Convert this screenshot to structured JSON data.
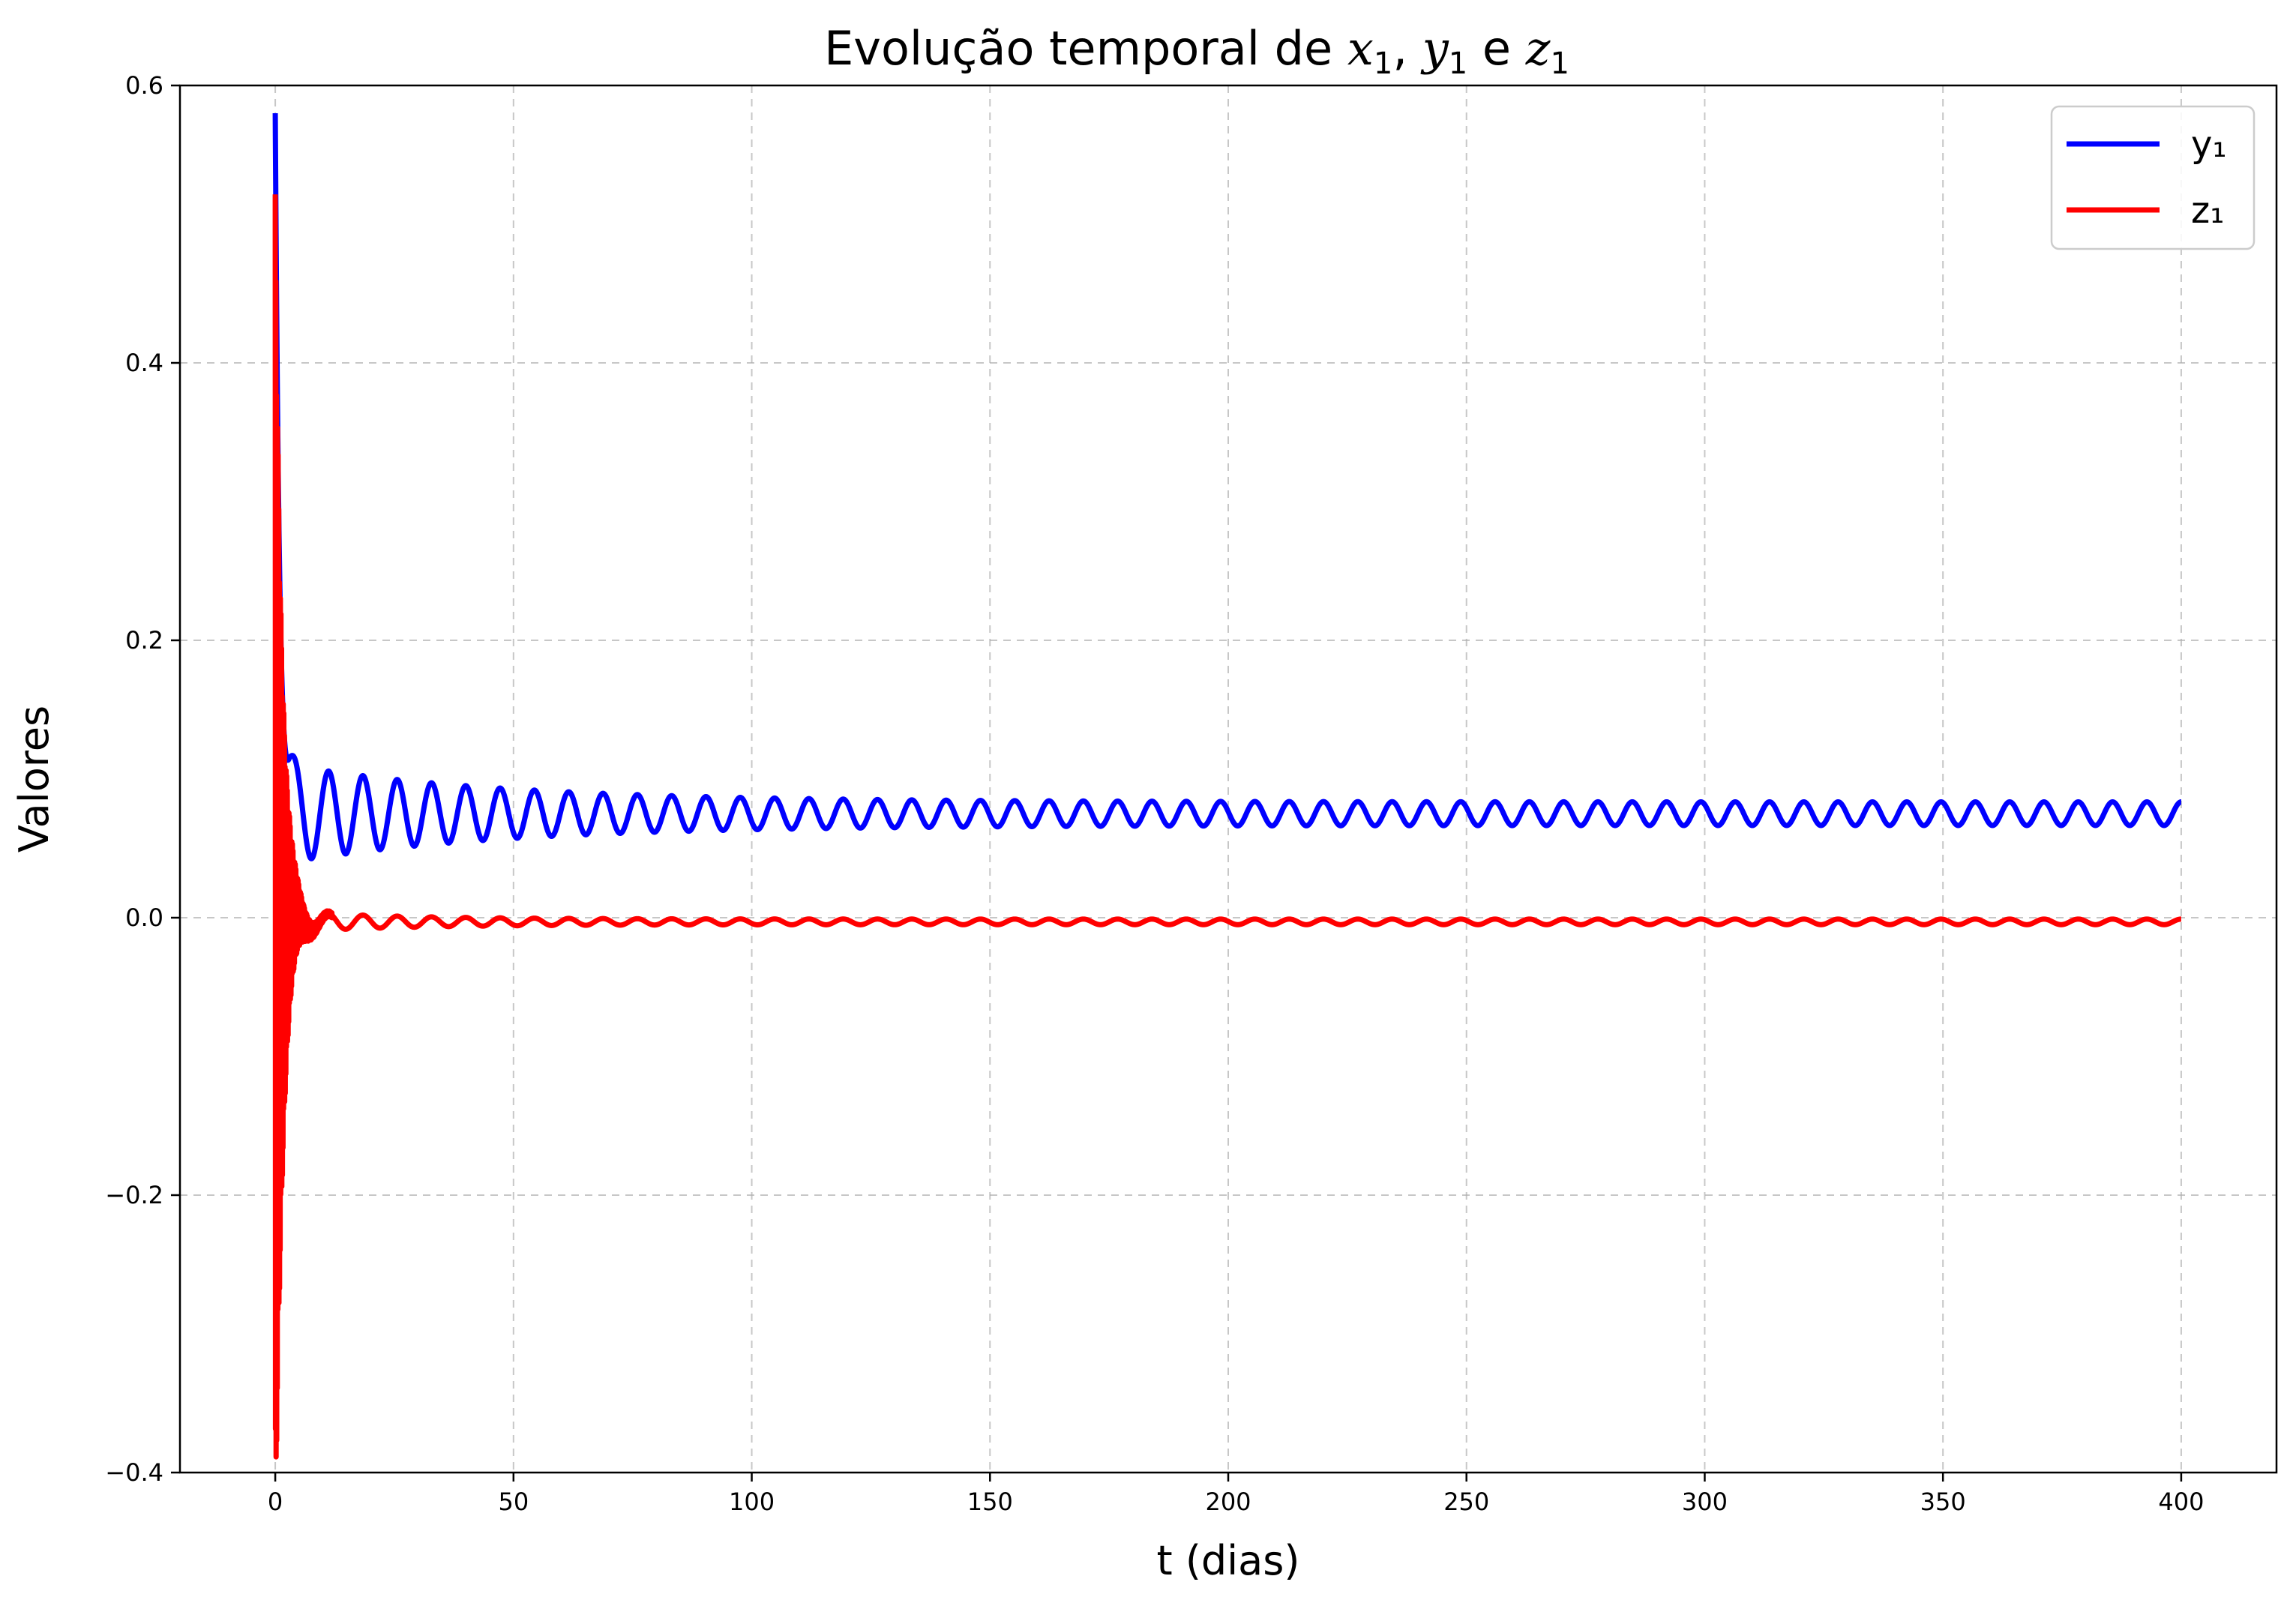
{
  "chart_data": {
    "type": "line",
    "title": "Evolução temporal de x₁, y₁ e z₁",
    "title_parts": [
      "Evolução temporal de ",
      "x",
      "1",
      ", ",
      "y",
      "1",
      " e ",
      "z",
      "1"
    ],
    "xlabel": "t (dias)",
    "ylabel": "Valores",
    "xlim": [
      -20,
      420
    ],
    "ylim": [
      -0.4,
      0.6
    ],
    "xticks": [
      0,
      50,
      100,
      150,
      200,
      250,
      300,
      350,
      400
    ],
    "xtick_labels": [
      "0",
      "50",
      "100",
      "150",
      "200",
      "250",
      "300",
      "350",
      "400"
    ],
    "yticks": [
      -0.4,
      -0.2,
      0.0,
      0.2,
      0.4,
      0.6
    ],
    "ytick_labels": [
      "−0.4",
      "−0.2",
      "0.0",
      "0.2",
      "0.4",
      "0.6"
    ],
    "grid": true,
    "legend_position": "top-right",
    "series": [
      {
        "name": "y₁",
        "color": "#0000ff",
        "model": "damped_oscillation",
        "initial_peak": 0.58,
        "mean": 0.075,
        "amplitude_start": 0.037,
        "amplitude_end": 0.0085,
        "period_days": 7.2,
        "t_start": 0,
        "t_end": 400,
        "final_value": 0.067
      },
      {
        "name": "z₁",
        "color": "#ff0000",
        "model": "fast_damped_oscillation",
        "initial_peak": 0.54,
        "initial_min": -0.4,
        "mean": -0.003,
        "amplitude_start": 0.003,
        "amplitude_end": 0.002,
        "period_days": 7.2,
        "t_start": 0,
        "t_end": 400,
        "final_value": -0.003
      }
    ]
  }
}
